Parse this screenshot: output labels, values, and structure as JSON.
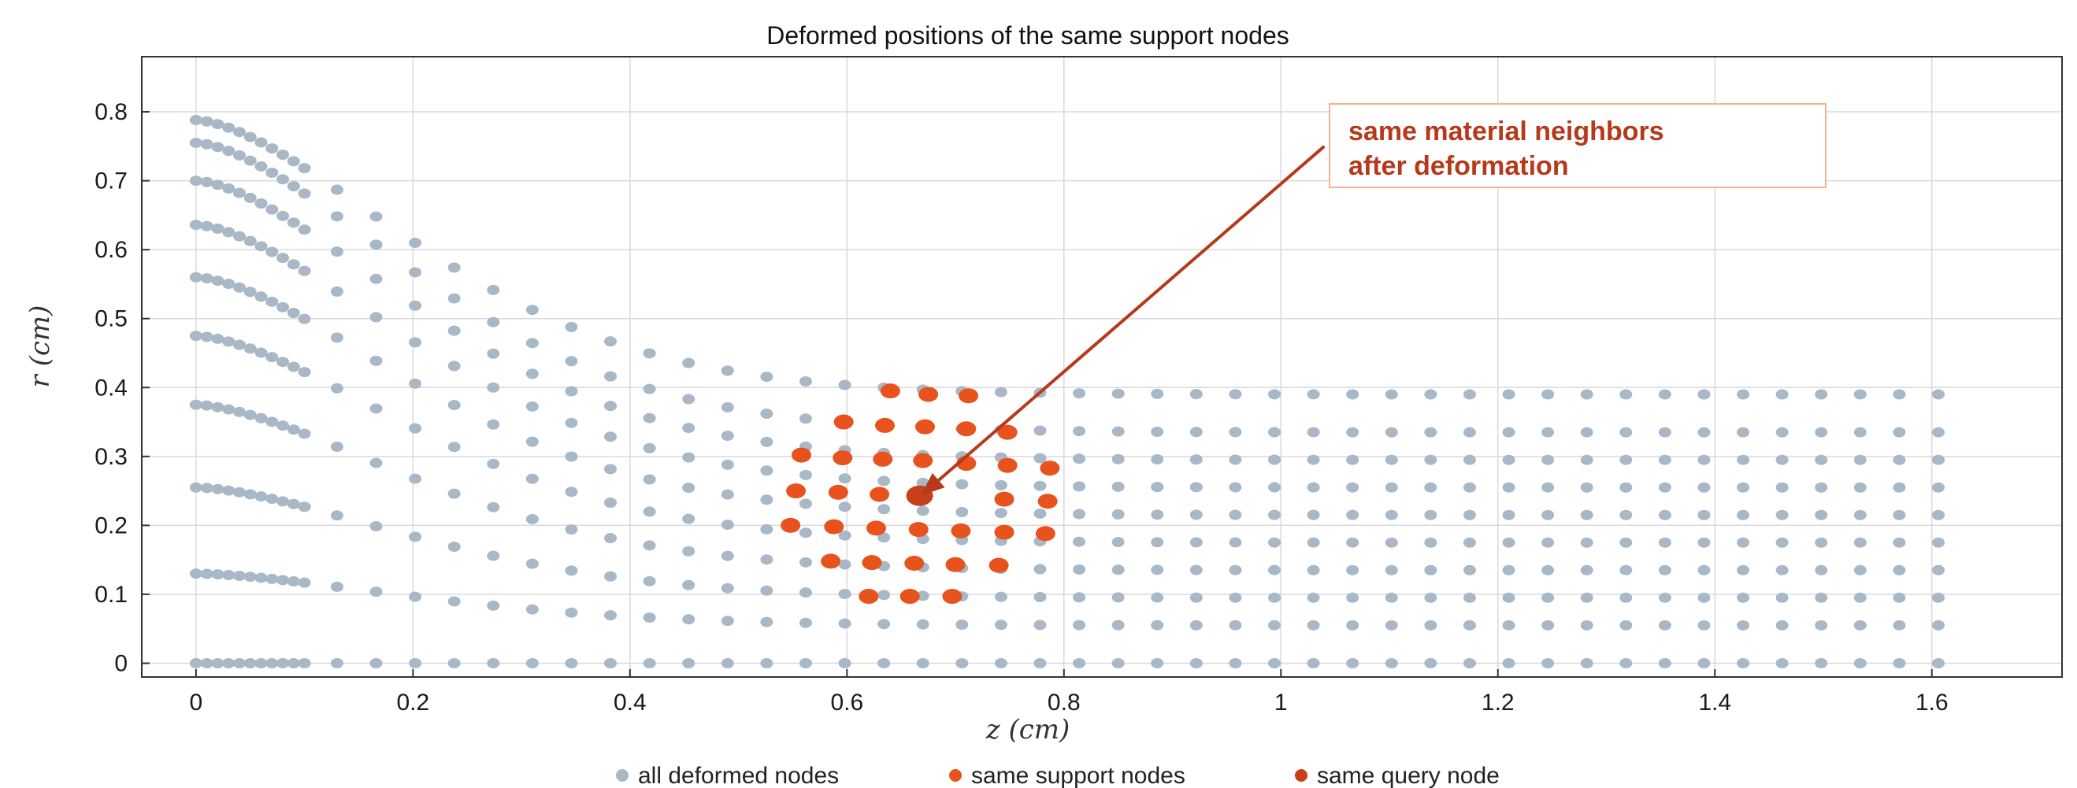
{
  "chart_data": {
    "type": "scatter",
    "title": "Deformed positions of the same support nodes",
    "xlabel": "z (cm)",
    "ylabel": "r (cm)",
    "xlim": [
      -0.05,
      1.72
    ],
    "ylim": [
      -0.02,
      0.88
    ],
    "xticks": [
      0,
      0.2,
      0.4,
      0.6,
      0.8,
      1,
      1.2,
      1.4,
      1.6
    ],
    "xtick_labels": [
      "0",
      "0.2",
      "0.4",
      "0.6",
      "0.8",
      "1",
      "1.2",
      "1.4",
      "1.6"
    ],
    "yticks": [
      0,
      0.1,
      0.2,
      0.3,
      0.4,
      0.5,
      0.6,
      0.7,
      0.8
    ],
    "ytick_labels": [
      "0",
      "0.1",
      "0.2",
      "0.3",
      "0.4",
      "0.5",
      "0.6",
      "0.7",
      "0.8"
    ],
    "grid": true,
    "legend_position": "bottom",
    "colors": {
      "all": "#a9b8c6",
      "support": "#e8521c",
      "query": "#c8401a",
      "annotation": "#b5391a",
      "annotation_border": "#f2b48c"
    },
    "series": [
      {
        "name": "all deformed nodes",
        "rows": [
          {
            "r0": 0.0,
            "r_far": 0.0
          },
          {
            "r0": 0.13,
            "r_far": 0.055
          },
          {
            "r0": 0.255,
            "r_far": 0.095
          },
          {
            "r0": 0.375,
            "r_far": 0.135
          },
          {
            "r0": 0.475,
            "r_far": 0.175
          },
          {
            "r0": 0.56,
            "r_far": 0.215
          },
          {
            "r0": 0.636,
            "r_far": 0.255
          },
          {
            "r0": 0.7,
            "r_far": 0.295
          },
          {
            "r0": 0.755,
            "r_far": 0.335
          },
          {
            "r0": 0.788,
            "r_far": 0.39
          }
        ]
      },
      {
        "name": "same support nodes",
        "points": [
          [
            0.64,
            0.395
          ],
          [
            0.675,
            0.39
          ],
          [
            0.712,
            0.388
          ],
          [
            0.597,
            0.35
          ],
          [
            0.635,
            0.345
          ],
          [
            0.672,
            0.343
          ],
          [
            0.71,
            0.34
          ],
          [
            0.748,
            0.335
          ],
          [
            0.558,
            0.302
          ],
          [
            0.596,
            0.298
          ],
          [
            0.633,
            0.296
          ],
          [
            0.67,
            0.294
          ],
          [
            0.71,
            0.29
          ],
          [
            0.748,
            0.287
          ],
          [
            0.787,
            0.283
          ],
          [
            0.553,
            0.25
          ],
          [
            0.592,
            0.248
          ],
          [
            0.63,
            0.245
          ],
          [
            0.745,
            0.238
          ],
          [
            0.785,
            0.235
          ],
          [
            0.548,
            0.2
          ],
          [
            0.588,
            0.198
          ],
          [
            0.627,
            0.196
          ],
          [
            0.666,
            0.194
          ],
          [
            0.705,
            0.192
          ],
          [
            0.745,
            0.19
          ],
          [
            0.783,
            0.188
          ],
          [
            0.585,
            0.148
          ],
          [
            0.623,
            0.146
          ],
          [
            0.662,
            0.145
          ],
          [
            0.7,
            0.143
          ],
          [
            0.74,
            0.142
          ],
          [
            0.62,
            0.097
          ],
          [
            0.658,
            0.097
          ],
          [
            0.697,
            0.097
          ]
        ]
      },
      {
        "name": "same query node",
        "points": [
          [
            0.667,
            0.243
          ]
        ]
      }
    ],
    "annotation": {
      "line1": "same material neighbors",
      "line2": "after deformation",
      "arrow_from": [
        1.04,
        0.75
      ],
      "arrow_to": [
        0.668,
        0.243
      ]
    }
  }
}
